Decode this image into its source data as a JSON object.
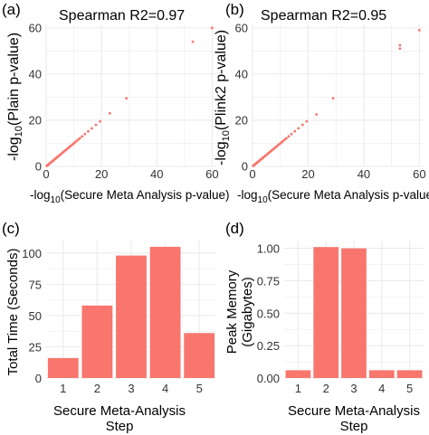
{
  "colors": {
    "accent": "#F8766D",
    "grid": "#EBEBEB"
  },
  "chart_data": [
    {
      "panel": "(a)",
      "type": "scatter",
      "annotation": "Spearman R2=0.97",
      "xlabel_prefix": "-log",
      "xlabel_sub": "10",
      "xlabel_suffix": "(Secure Meta Analysis p-value)",
      "ylabel_prefix": "-log",
      "ylabel_sub": "10",
      "ylabel_suffix": "(Plain p-value)",
      "xlim": [
        0,
        61.5
      ],
      "ylim": [
        0,
        61.5
      ],
      "xticks": [
        0,
        20,
        40,
        60
      ],
      "yticks": [
        0,
        20,
        40,
        60
      ],
      "x": [
        0.2,
        0.4,
        0.6,
        0.8,
        1.0,
        1.2,
        1.4,
        1.6,
        1.8,
        2.0,
        2.2,
        2.5,
        2.8,
        3.1,
        3.4,
        3.7,
        4.0,
        4.3,
        4.6,
        5.0,
        5.4,
        5.8,
        6.2,
        6.6,
        7.0,
        7.4,
        7.8,
        8.2,
        8.6,
        9.0,
        9.5,
        10.0,
        10.5,
        11.0,
        11.6,
        12.2,
        13.0,
        14.0,
        15.2,
        16.5,
        18.0,
        19.5,
        23.0,
        29.0,
        53.0,
        60.0
      ],
      "y": [
        0.2,
        0.4,
        0.6,
        0.8,
        1.0,
        1.2,
        1.4,
        1.6,
        1.8,
        2.0,
        2.2,
        2.5,
        2.8,
        3.1,
        3.4,
        3.7,
        4.0,
        4.3,
        4.6,
        5.0,
        5.4,
        5.8,
        6.2,
        6.6,
        7.0,
        7.4,
        7.8,
        8.2,
        8.6,
        9.0,
        9.5,
        10.0,
        10.5,
        11.0,
        11.6,
        12.2,
        13.0,
        14.0,
        15.2,
        16.5,
        18.0,
        19.5,
        23.0,
        29.5,
        54.0,
        60.0
      ]
    },
    {
      "panel": "(b)",
      "type": "scatter",
      "annotation": "Spearman R2=0.95",
      "xlabel_prefix": "-log",
      "xlabel_sub": "10",
      "xlabel_suffix": "(Secure Meta Analysis p-value)",
      "ylabel_prefix": "-log",
      "ylabel_sub": "10",
      "ylabel_suffix": "(Plink2 p-value)",
      "xlim": [
        0,
        61.5
      ],
      "ylim": [
        0,
        61.5
      ],
      "xticks": [
        0,
        20,
        40,
        60
      ],
      "yticks": [
        0,
        20,
        40,
        60
      ],
      "x": [
        0.2,
        0.4,
        0.6,
        0.8,
        1.0,
        1.2,
        1.4,
        1.6,
        1.8,
        2.0,
        2.2,
        2.5,
        2.8,
        3.1,
        3.4,
        3.7,
        4.0,
        4.3,
        4.6,
        5.0,
        5.4,
        5.8,
        6.2,
        6.6,
        7.0,
        7.4,
        7.8,
        8.2,
        8.6,
        9.0,
        9.5,
        10.0,
        10.5,
        11.0,
        11.6,
        12.2,
        13.0,
        14.0,
        15.2,
        16.5,
        18.0,
        19.5,
        23.0,
        29.0,
        53.0,
        53.0,
        60.0
      ],
      "y": [
        0.2,
        0.4,
        0.6,
        0.8,
        1.0,
        1.2,
        1.4,
        1.6,
        1.8,
        2.0,
        2.2,
        2.5,
        2.8,
        3.1,
        3.4,
        3.7,
        4.0,
        4.3,
        4.6,
        5.0,
        5.4,
        5.8,
        6.2,
        6.6,
        7.0,
        7.4,
        7.8,
        8.2,
        8.6,
        9.0,
        9.5,
        10.0,
        10.5,
        11.0,
        11.6,
        12.2,
        13.0,
        14.0,
        15.2,
        16.5,
        18.0,
        19.5,
        22.5,
        29.5,
        51.0,
        52.5,
        59.0
      ]
    },
    {
      "panel": "(c)",
      "type": "bar",
      "categories": [
        "1",
        "2",
        "3",
        "4",
        "5"
      ],
      "values": [
        16,
        58,
        98,
        105,
        36
      ],
      "xlabel_line1": "Secure Meta-Analysis",
      "xlabel_line2": "Step",
      "ylabel": "Total Time (Seconds)",
      "ylim": [
        0,
        110
      ],
      "yticks": [
        0,
        25,
        50,
        75,
        100
      ]
    },
    {
      "panel": "(d)",
      "type": "bar",
      "categories": [
        "1",
        "2",
        "3",
        "4",
        "5"
      ],
      "values": [
        0.06,
        1.01,
        1.0,
        0.06,
        0.06
      ],
      "xlabel_line1": "Secure Meta-Analysis",
      "xlabel_line2": "Step",
      "ylabel_line1": "Peak Memory",
      "ylabel_line2": "(Gigabytes)",
      "ylim": [
        0,
        1.06
      ],
      "yticks": [
        0.0,
        0.25,
        0.5,
        0.75,
        1.0
      ],
      "ytick_labels": [
        "0.00",
        "0.25",
        "0.50",
        "0.75",
        "1.00"
      ]
    }
  ]
}
